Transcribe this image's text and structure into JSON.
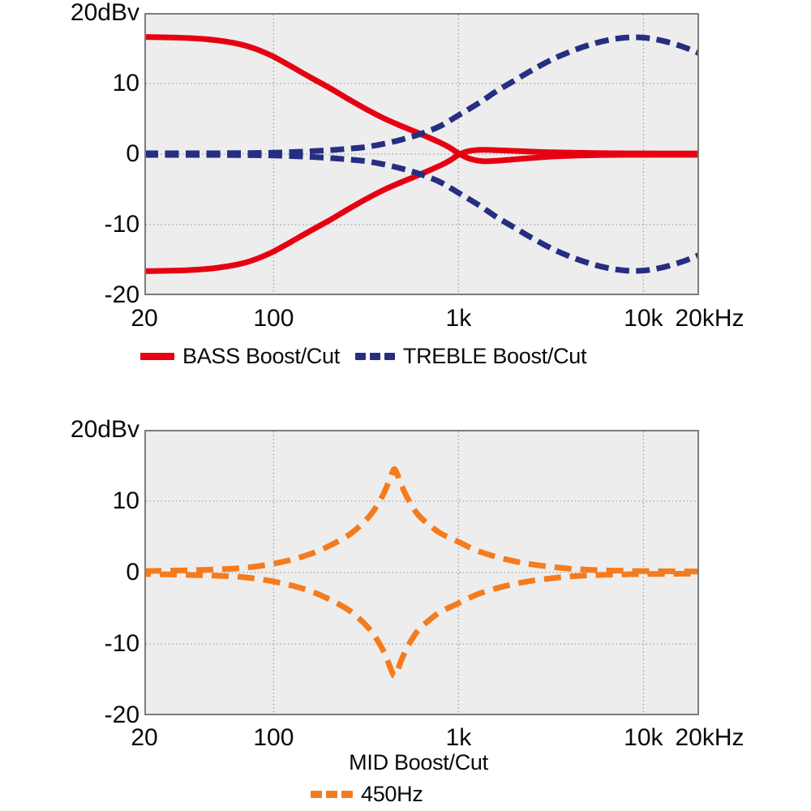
{
  "figure": {
    "background": "#ffffff",
    "plot_background": "#ededed",
    "plot_border_color": "#7d7d7d",
    "grid_color": "#9a9a9a",
    "text_color": "#0a0a0a",
    "accent_red": "#e60012",
    "accent_blue": "#262e82",
    "accent_orange": "#f57b1d"
  },
  "chart_data": [
    {
      "type": "line",
      "title": "",
      "x_scale": "log",
      "x_unit": "Hz",
      "y_unit": "dBv",
      "x_range": [
        20,
        20000
      ],
      "y_range": [
        -20,
        20
      ],
      "x_ticks": [
        {
          "value": 20,
          "label": "20"
        },
        {
          "value": 100,
          "label": "100"
        },
        {
          "value": 1000,
          "label": "1k"
        },
        {
          "value": 10000,
          "label": "10k"
        },
        {
          "value": 20000,
          "label": "20kHz"
        }
      ],
      "y_ticks": [
        {
          "value": 20,
          "label": "20dBv"
        },
        {
          "value": 10,
          "label": "10"
        },
        {
          "value": 0,
          "label": "0"
        },
        {
          "value": -10,
          "label": "-10"
        },
        {
          "value": -20,
          "label": "-20"
        }
      ],
      "x_grid": [
        100,
        1000,
        10000
      ],
      "y_grid": [
        10,
        0,
        -10
      ],
      "legend": [
        {
          "label": "BASS Boost/Cut",
          "color": "#e60012",
          "style": "solid"
        },
        {
          "label": "TREBLE Boost/Cut",
          "color": "#262e82",
          "style": "dashed"
        }
      ],
      "series": [
        {
          "name": "bass-boost",
          "color": "#e60012",
          "style": "solid",
          "points": [
            [
              20,
              16.6
            ],
            [
              30,
              16.5
            ],
            [
              40,
              16.35
            ],
            [
              50,
              16.1
            ],
            [
              65,
              15.6
            ],
            [
              80,
              14.9
            ],
            [
              100,
              13.8
            ],
            [
              125,
              12.4
            ],
            [
              160,
              10.8
            ],
            [
              200,
              9.4
            ],
            [
              250,
              7.9
            ],
            [
              315,
              6.4
            ],
            [
              400,
              5.0
            ],
            [
              500,
              3.9
            ],
            [
              630,
              2.8
            ],
            [
              800,
              1.6
            ],
            [
              900,
              0.9
            ],
            [
              1000,
              0.1
            ],
            [
              1150,
              -0.65
            ],
            [
              1350,
              -1.0
            ],
            [
              1600,
              -0.95
            ],
            [
              2000,
              -0.75
            ],
            [
              2500,
              -0.55
            ],
            [
              3200,
              -0.35
            ],
            [
              4500,
              -0.2
            ],
            [
              7000,
              -0.12
            ],
            [
              10000,
              -0.1
            ],
            [
              20000,
              -0.1
            ]
          ]
        },
        {
          "name": "bass-cut",
          "color": "#e60012",
          "style": "solid",
          "points": [
            [
              20,
              -16.6
            ],
            [
              30,
              -16.5
            ],
            [
              40,
              -16.35
            ],
            [
              50,
              -16.1
            ],
            [
              65,
              -15.6
            ],
            [
              80,
              -14.9
            ],
            [
              100,
              -13.8
            ],
            [
              125,
              -12.4
            ],
            [
              160,
              -10.8
            ],
            [
              200,
              -9.4
            ],
            [
              250,
              -7.9
            ],
            [
              315,
              -6.4
            ],
            [
              400,
              -5.0
            ],
            [
              500,
              -3.9
            ],
            [
              630,
              -2.8
            ],
            [
              800,
              -1.6
            ],
            [
              900,
              -0.9
            ],
            [
              1000,
              -0.1
            ],
            [
              1150,
              0.45
            ],
            [
              1350,
              0.6
            ],
            [
              1600,
              0.55
            ],
            [
              2000,
              0.45
            ],
            [
              2500,
              0.35
            ],
            [
              3200,
              0.25
            ],
            [
              4500,
              0.18
            ],
            [
              7000,
              0.12
            ],
            [
              10000,
              0.1
            ],
            [
              20000,
              0.08
            ]
          ]
        },
        {
          "name": "treble-boost",
          "color": "#262e82",
          "style": "dashed",
          "points": [
            [
              20,
              0.12
            ],
            [
              50,
              0.12
            ],
            [
              80,
              0.16
            ],
            [
              100,
              0.2
            ],
            [
              130,
              0.3
            ],
            [
              160,
              0.4
            ],
            [
              200,
              0.55
            ],
            [
              250,
              0.75
            ],
            [
              315,
              1.0
            ],
            [
              400,
              1.5
            ],
            [
              500,
              2.1
            ],
            [
              630,
              2.9
            ],
            [
              800,
              4.0
            ],
            [
              1000,
              5.5
            ],
            [
              1300,
              7.3
            ],
            [
              1600,
              8.9
            ],
            [
              2000,
              10.4
            ],
            [
              2500,
              11.9
            ],
            [
              3200,
              13.4
            ],
            [
              4000,
              14.5
            ],
            [
              5000,
              15.4
            ],
            [
              6300,
              16.1
            ],
            [
              8000,
              16.5
            ],
            [
              10000,
              16.5
            ],
            [
              12500,
              16.1
            ],
            [
              16000,
              15.3
            ],
            [
              20000,
              14.3
            ]
          ]
        },
        {
          "name": "treble-cut",
          "color": "#262e82",
          "style": "dashed",
          "points": [
            [
              20,
              -0.12
            ],
            [
              50,
              -0.12
            ],
            [
              80,
              -0.16
            ],
            [
              100,
              -0.2
            ],
            [
              130,
              -0.3
            ],
            [
              160,
              -0.4
            ],
            [
              200,
              -0.55
            ],
            [
              250,
              -0.75
            ],
            [
              315,
              -1.0
            ],
            [
              400,
              -1.5
            ],
            [
              500,
              -2.1
            ],
            [
              630,
              -2.9
            ],
            [
              800,
              -4.0
            ],
            [
              1000,
              -5.5
            ],
            [
              1300,
              -7.3
            ],
            [
              1600,
              -8.9
            ],
            [
              2000,
              -10.4
            ],
            [
              2500,
              -11.9
            ],
            [
              3200,
              -13.4
            ],
            [
              4000,
              -14.5
            ],
            [
              5000,
              -15.4
            ],
            [
              6300,
              -16.1
            ],
            [
              8000,
              -16.5
            ],
            [
              10000,
              -16.5
            ],
            [
              12500,
              -16.1
            ],
            [
              16000,
              -15.3
            ],
            [
              20000,
              -14.3
            ]
          ]
        }
      ]
    },
    {
      "type": "line",
      "title": "MID Boost/Cut",
      "x_scale": "log",
      "x_unit": "Hz",
      "y_unit": "dBv",
      "x_range": [
        20,
        20000
      ],
      "y_range": [
        -20,
        20
      ],
      "center_frequency_hz": 450,
      "x_ticks": [
        {
          "value": 20,
          "label": "20"
        },
        {
          "value": 100,
          "label": "100"
        },
        {
          "value": 1000,
          "label": "1k"
        },
        {
          "value": 10000,
          "label": "10k"
        },
        {
          "value": 20000,
          "label": "20kHz"
        }
      ],
      "y_ticks": [
        {
          "value": 20,
          "label": "20dBv"
        },
        {
          "value": 10,
          "label": "10"
        },
        {
          "value": 0,
          "label": "0"
        },
        {
          "value": -10,
          "label": "-10"
        },
        {
          "value": -20,
          "label": "-20"
        }
      ],
      "x_grid": [
        100,
        1000,
        10000
      ],
      "y_grid": [
        10,
        0,
        -10
      ],
      "legend": [
        {
          "label": "450Hz",
          "color": "#f57b1d",
          "style": "dashed"
        }
      ],
      "series": [
        {
          "name": "mid-boost",
          "color": "#f57b1d",
          "style": "dashed",
          "points": [
            [
              20,
              0.2
            ],
            [
              30,
              0.28
            ],
            [
              40,
              0.36
            ],
            [
              50,
              0.45
            ],
            [
              65,
              0.6
            ],
            [
              80,
              0.85
            ],
            [
              100,
              1.25
            ],
            [
              127,
              1.85
            ],
            [
              162,
              2.7
            ],
            [
              202,
              3.8
            ],
            [
              253,
              5.2
            ],
            [
              289,
              6.4
            ],
            [
              337,
              8.2
            ],
            [
              380,
              10.3
            ],
            [
              410,
              12.1
            ],
            [
              435,
              13.8
            ],
            [
              450,
              14.5
            ],
            [
              466,
              13.8
            ],
            [
              494,
              12.1
            ],
            [
              533,
              10.3
            ],
            [
              600,
              8.2
            ],
            [
              700,
              6.6
            ],
            [
              800,
              5.5
            ],
            [
              1000,
              4.3
            ],
            [
              1250,
              3.1
            ],
            [
              1600,
              2.2
            ],
            [
              2000,
              1.6
            ],
            [
              2500,
              1.15
            ],
            [
              3200,
              0.8
            ],
            [
              4000,
              0.55
            ],
            [
              5000,
              0.4
            ],
            [
              6300,
              0.3
            ],
            [
              8000,
              0.25
            ],
            [
              10000,
              0.2
            ],
            [
              20000,
              0.15
            ]
          ]
        },
        {
          "name": "mid-cut",
          "color": "#f57b1d",
          "style": "dashed",
          "points": [
            [
              20,
              -0.2
            ],
            [
              30,
              -0.28
            ],
            [
              40,
              -0.36
            ],
            [
              50,
              -0.45
            ],
            [
              65,
              -0.6
            ],
            [
              80,
              -0.85
            ],
            [
              100,
              -1.25
            ],
            [
              127,
              -1.85
            ],
            [
              162,
              -2.7
            ],
            [
              202,
              -3.8
            ],
            [
              253,
              -5.2
            ],
            [
              289,
              -6.4
            ],
            [
              337,
              -8.2
            ],
            [
              380,
              -10.3
            ],
            [
              410,
              -12.1
            ],
            [
              435,
              -13.8
            ],
            [
              450,
              -14.5
            ],
            [
              466,
              -13.8
            ],
            [
              494,
              -12.1
            ],
            [
              533,
              -10.3
            ],
            [
              600,
              -8.2
            ],
            [
              700,
              -6.6
            ],
            [
              800,
              -5.5
            ],
            [
              1000,
              -4.3
            ],
            [
              1250,
              -3.1
            ],
            [
              1600,
              -2.2
            ],
            [
              2000,
              -1.6
            ],
            [
              2500,
              -1.15
            ],
            [
              3200,
              -0.8
            ],
            [
              4000,
              -0.55
            ],
            [
              5000,
              -0.4
            ],
            [
              6300,
              -0.3
            ],
            [
              8000,
              -0.25
            ],
            [
              10000,
              -0.2
            ],
            [
              20000,
              -0.15
            ]
          ]
        }
      ]
    }
  ]
}
